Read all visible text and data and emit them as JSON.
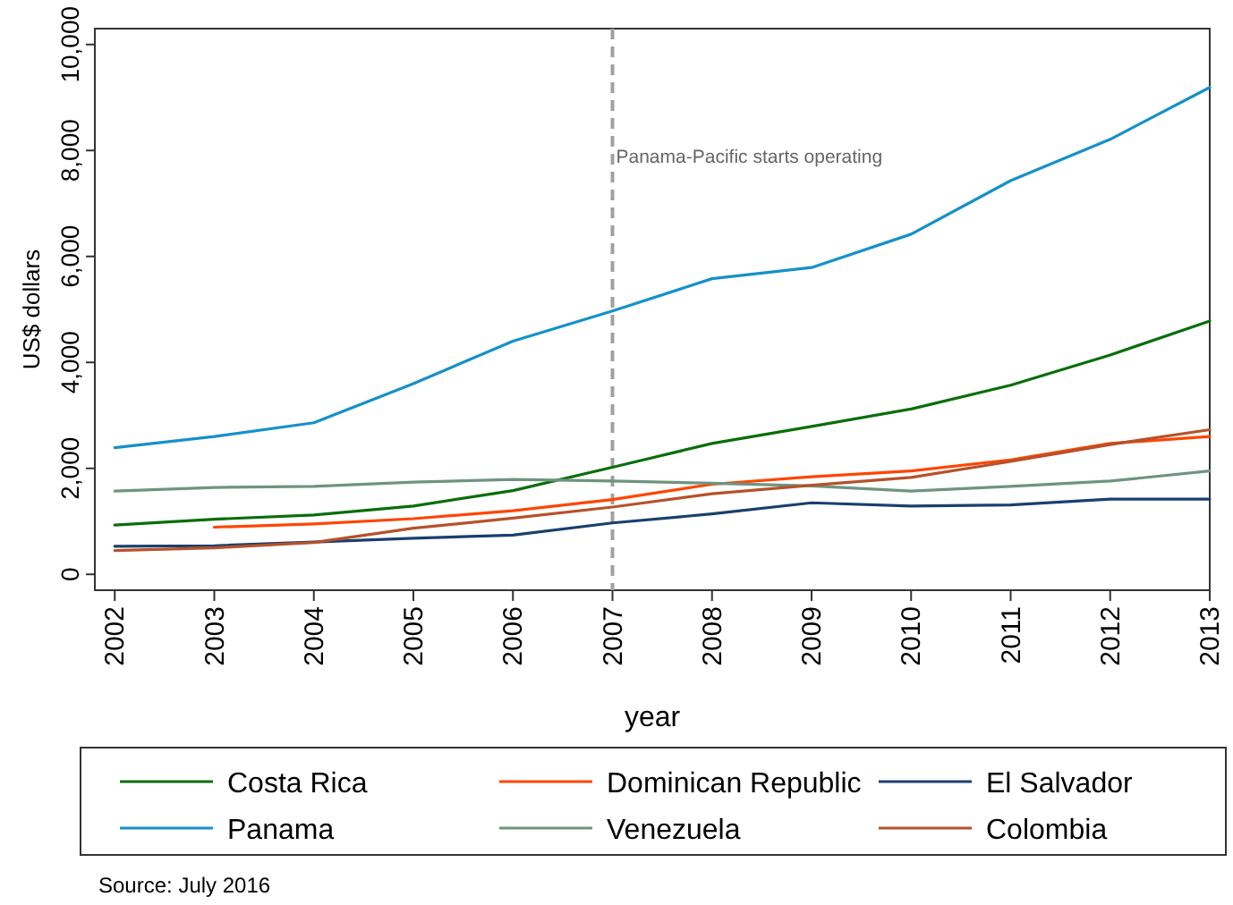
{
  "chart_data": {
    "type": "line",
    "xlabel": "year",
    "ylabel": "US$ dollars",
    "x": [
      2002,
      2003,
      2004,
      2005,
      2006,
      2007,
      2008,
      2009,
      2010,
      2011,
      2012,
      2013
    ],
    "xlim": [
      2001.8,
      2013
    ],
    "xticks": [
      2002,
      2003,
      2004,
      2005,
      2006,
      2007,
      2008,
      2009,
      2010,
      2011,
      2012,
      2013
    ],
    "ylim": [
      -300,
      10300
    ],
    "yticks": [
      {
        "value": 0,
        "label": "0"
      },
      {
        "value": 2000,
        "label": "2,000"
      },
      {
        "value": 4000,
        "label": "4,000"
      },
      {
        "value": 6000,
        "label": "6,000"
      },
      {
        "value": 8000,
        "label": "8,000"
      },
      {
        "value": 10000,
        "label": "10,000"
      }
    ],
    "series": [
      {
        "name": "Costa Rica",
        "color": "#0a6e0a",
        "values": [
          930,
          1040,
          1120,
          1290,
          1580,
          2020,
          2470,
          2790,
          3120,
          3570,
          4140,
          4780
        ]
      },
      {
        "name": "Dominican Republic",
        "color": "#ff4500",
        "values": [
          null,
          890,
          950,
          1050,
          1200,
          1410,
          1700,
          1840,
          1950,
          2160,
          2470,
          2600
        ]
      },
      {
        "name": "El Salvador",
        "color": "#1a3f6e",
        "values": [
          530,
          540,
          610,
          680,
          740,
          970,
          1140,
          1350,
          1290,
          1310,
          1420,
          1420
        ]
      },
      {
        "name": "Panama",
        "color": "#1591c8",
        "values": [
          2390,
          2600,
          2860,
          3600,
          4400,
          4970,
          5580,
          5790,
          6420,
          7430,
          8210,
          9190
        ]
      },
      {
        "name": "Venezuela",
        "color": "#6e9480",
        "values": [
          1570,
          1640,
          1660,
          1740,
          1790,
          1760,
          1720,
          1670,
          1570,
          1660,
          1760,
          1950
        ]
      },
      {
        "name": "Colombia",
        "color": "#b5522a",
        "values": [
          450,
          500,
          600,
          870,
          1060,
          1270,
          1520,
          1680,
          1830,
          2130,
          2450,
          2730
        ]
      }
    ],
    "ref_lines": [
      {
        "axis": "x",
        "value": 2007,
        "label": "Panama-Pacific starts operating",
        "color": "#a0a0a0",
        "line_style": "dashed"
      }
    ],
    "legend": "bottom",
    "grid": false,
    "line_style": "solid",
    "annotations": [
      "Source: July 2016"
    ]
  }
}
